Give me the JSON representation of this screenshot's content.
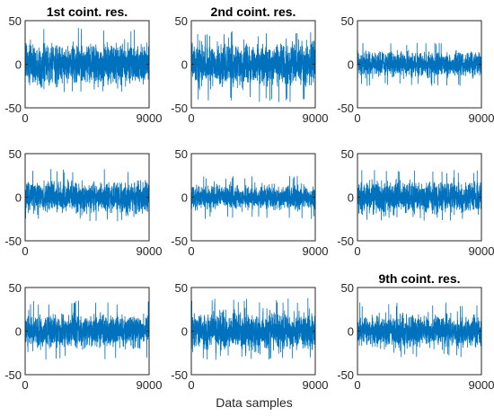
{
  "chart_data": {
    "type": "line",
    "layout": "3x3 grid of subplots",
    "xlabel": "Data samples",
    "ylabel": "",
    "xlim": [
      0,
      9000
    ],
    "ylim": [
      -50,
      50
    ],
    "xticks": [
      "0",
      "9000"
    ],
    "yticks": [
      "50",
      "0",
      "-50"
    ],
    "grid": false,
    "legend": "none",
    "series_color": "#0072BD",
    "panels": [
      {
        "title": "1st coint. res.",
        "samples": 9000,
        "amplitude_range": [
          -32,
          42
        ]
      },
      {
        "title": "2nd coint. res.",
        "samples": 9000,
        "amplitude_range": [
          -44,
          38
        ]
      },
      {
        "title": "",
        "samples": 9000,
        "amplitude_range": [
          -25,
          25
        ]
      },
      {
        "title": "",
        "samples": 9000,
        "amplitude_range": [
          -28,
          33
        ]
      },
      {
        "title": "",
        "samples": 9000,
        "amplitude_range": [
          -25,
          25
        ]
      },
      {
        "title": "",
        "samples": 9000,
        "amplitude_range": [
          -27,
          32
        ]
      },
      {
        "title": "",
        "samples": 9000,
        "amplitude_range": [
          -33,
          35
        ]
      },
      {
        "title": "",
        "samples": 9000,
        "amplitude_range": [
          -33,
          38
        ]
      },
      {
        "title": "9th coint. res.",
        "samples": 9000,
        "amplitude_range": [
          -30,
          33
        ]
      }
    ]
  }
}
